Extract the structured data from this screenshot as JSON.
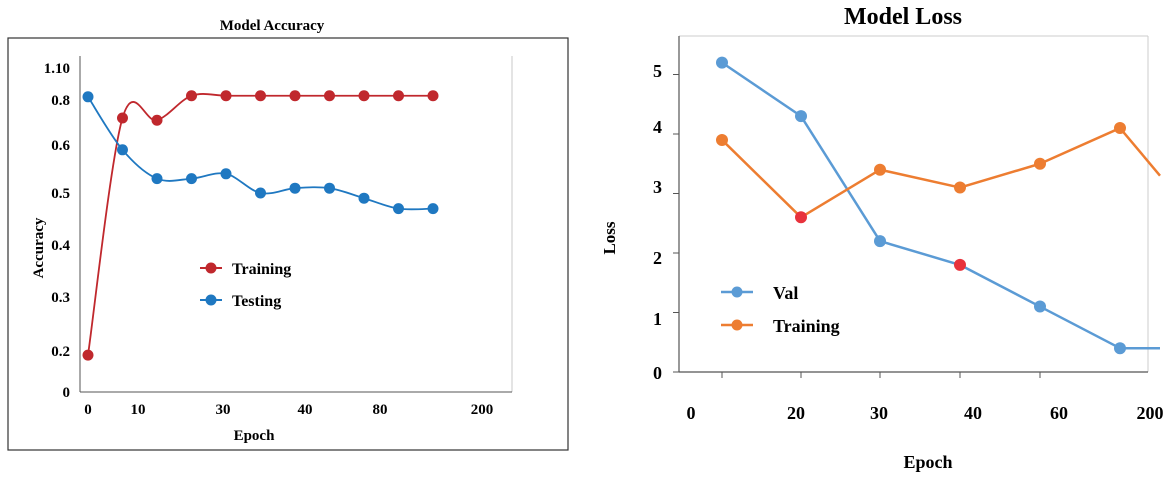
{
  "chart_data": [
    {
      "type": "line",
      "title": "Model Accuracy",
      "xlabel": "Epoch",
      "ylabel": "Accuracy",
      "xtick_labels": [
        "0",
        "10",
        "30",
        "40",
        "80",
        "200"
      ],
      "ytick_labels": [
        "0",
        "0.2",
        "0.3",
        "0.4",
        "0.5",
        "0.6",
        "0.8",
        "1.10"
      ],
      "grid": false,
      "legend_position": "center",
      "series": [
        {
          "name": "Training",
          "color": "#c0282d",
          "x_positions": [
            0,
            1,
            2,
            3,
            4,
            5,
            6,
            7,
            8,
            9,
            10
          ],
          "values": [
            0.18,
            0.72,
            0.71,
            0.84,
            0.84,
            0.84,
            0.84,
            0.84,
            0.84,
            0.84,
            0.84
          ]
        },
        {
          "name": "Testing",
          "color": "#1f78c1",
          "x_positions": [
            0,
            1,
            2,
            3,
            4,
            5,
            6,
            7,
            8,
            9,
            10
          ],
          "values": [
            0.83,
            0.59,
            0.53,
            0.53,
            0.54,
            0.5,
            0.51,
            0.51,
            0.49,
            0.47,
            0.47
          ]
        }
      ]
    },
    {
      "type": "line",
      "title": "Model Loss",
      "xlabel": "Epoch",
      "ylabel": "Loss",
      "xtick_labels": [
        "0",
        "20",
        "30",
        "40",
        "60",
        "200"
      ],
      "ytick_labels": [
        "0",
        "1",
        "2",
        "3",
        "4",
        "5"
      ],
      "grid": false,
      "legend_position": "lower-left",
      "series": [
        {
          "name": "Val",
          "color": "#5b9bd5",
          "x_positions": [
            0,
            1,
            2,
            3,
            4,
            5,
            6
          ],
          "values": [
            5.2,
            4.3,
            2.2,
            1.8,
            1.1,
            0.4,
            0.4
          ]
        },
        {
          "name": "Training",
          "color": "#ed7d31",
          "x_positions": [
            0,
            1,
            2,
            3,
            4,
            5,
            6
          ],
          "values": [
            3.9,
            2.6,
            3.4,
            3.1,
            3.5,
            4.1,
            3.3
          ]
        }
      ],
      "highlight_points": [
        {
          "series": "Training",
          "index": 1,
          "color": "#e8323c"
        },
        {
          "series": "Val",
          "index": 3,
          "color": "#e8323c"
        }
      ]
    }
  ]
}
